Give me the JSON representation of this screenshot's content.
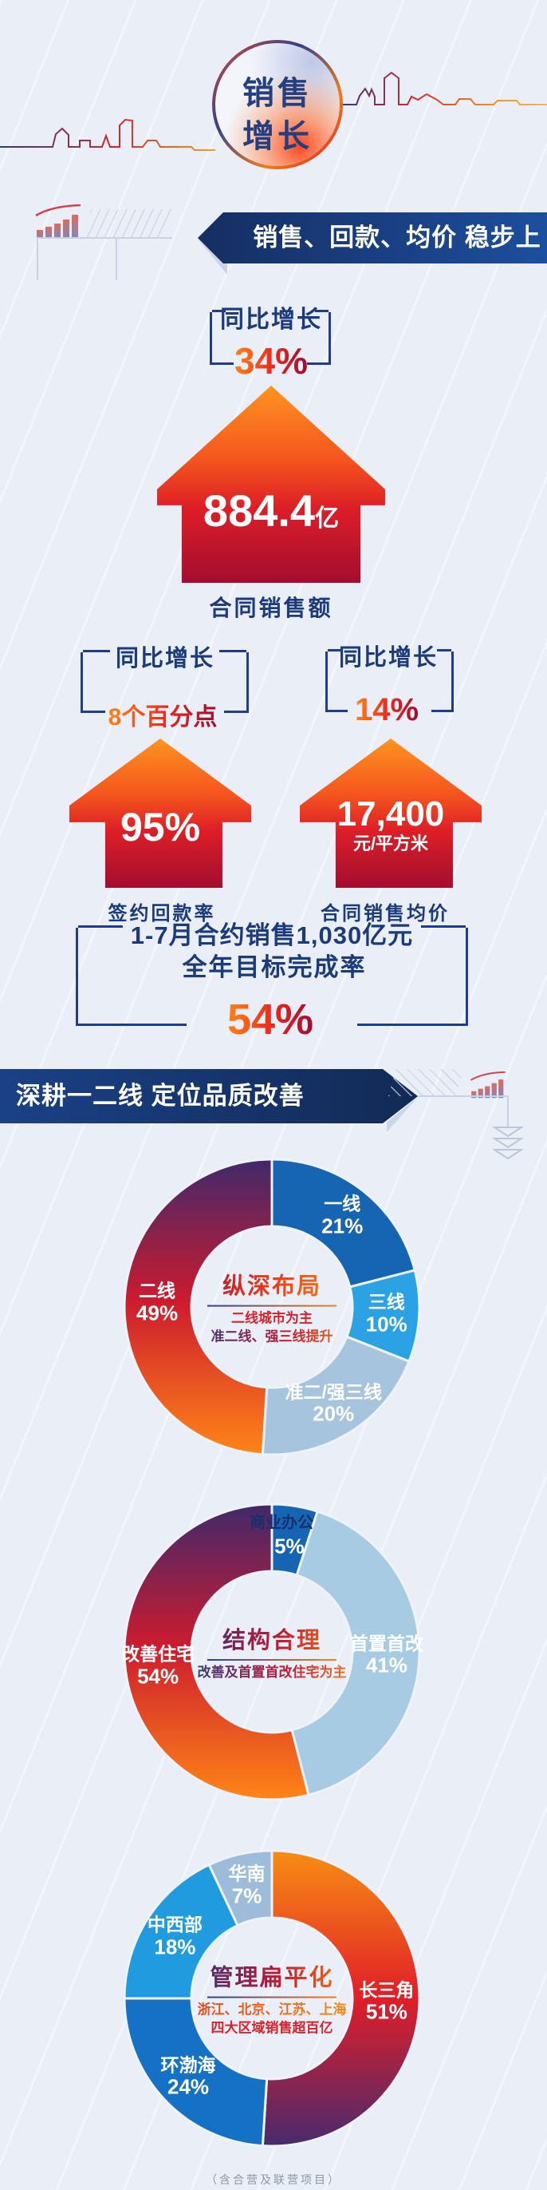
{
  "header": {
    "badge_line1": "销售",
    "badge_line2": "增长"
  },
  "section1": {
    "banner": "销售、回款、均价 稳步上升",
    "growth_top": {
      "label": "同比增长",
      "value": "34%"
    },
    "main": {
      "value": "884.4",
      "unit": "亿",
      "caption": "合同销售额"
    },
    "stat_left": {
      "growth_label": "同比增长",
      "growth_value": "8个百分点",
      "value": "95%",
      "caption": "签约回款率"
    },
    "stat_right": {
      "growth_label": "同比增长",
      "growth_value": "14%",
      "value": "17,400",
      "unit": "元/平方米",
      "caption": "合同销售均价"
    },
    "summary": {
      "line1": "1-7月合约销售1,030亿元",
      "line2": "全年目标完成率",
      "value": "54%"
    }
  },
  "section2": {
    "banner": "深耕一二线 定位品质改善"
  },
  "chart_data": [
    {
      "type": "donut",
      "title": "纵深布局",
      "subtitle_lines": [
        "二线城市为主",
        "准二线、强三线提升"
      ],
      "legend_position": "inside",
      "segments": [
        {
          "label": "一线",
          "value": 21,
          "pct": "21%",
          "color": "#1565b2"
        },
        {
          "label": "三线",
          "value": 10,
          "pct": "10%",
          "color": "#2ba2e4"
        },
        {
          "label": "准二/强三线",
          "value": 20,
          "pct": "20%",
          "color": "#a6c4de"
        },
        {
          "label": "二线",
          "value": 49,
          "pct": "49%",
          "color": "warm-down"
        }
      ]
    },
    {
      "type": "donut",
      "title": "结构合理",
      "subtitle_lines": [
        "改善及首置首改住宅为主"
      ],
      "legend_position": "inside",
      "segments": [
        {
          "label": "商业办公",
          "value": 5,
          "pct": "5%",
          "color": "#1565b2"
        },
        {
          "label": "首置首改",
          "value": 41,
          "pct": "41%",
          "color": "#a8cbe4"
        },
        {
          "label": "改善住宅",
          "value": 54,
          "pct": "54%",
          "color": "warm-down"
        }
      ]
    },
    {
      "type": "donut",
      "title": "管理扁平化",
      "subtitle_lines": [
        "浙江、北京、江苏、上海",
        "四大区域销售超百亿"
      ],
      "legend_position": "inside",
      "segments": [
        {
          "label": "长三角",
          "value": 51,
          "pct": "51%",
          "color": "warm-up"
        },
        {
          "label": "环渤海",
          "value": 24,
          "pct": "24%",
          "color": "#1471c5"
        },
        {
          "label": "中西部",
          "value": 18,
          "pct": "18%",
          "color": "#209bdf"
        },
        {
          "label": "华南",
          "value": 7,
          "pct": "7%",
          "color": "#9dbcd9"
        }
      ]
    }
  ],
  "footer": "（含合营及联营项目）",
  "colors": {
    "background": "#eaeef7",
    "navy_text": "#1b3b7d",
    "banner_blue_dark": "#152e62",
    "banner_blue_light": "#1c4f9e",
    "accent_red": "#d6232d",
    "accent_orange": "#f97c12",
    "arrow_top": "#ff9420",
    "arrow_bottom": "#a30d30"
  }
}
